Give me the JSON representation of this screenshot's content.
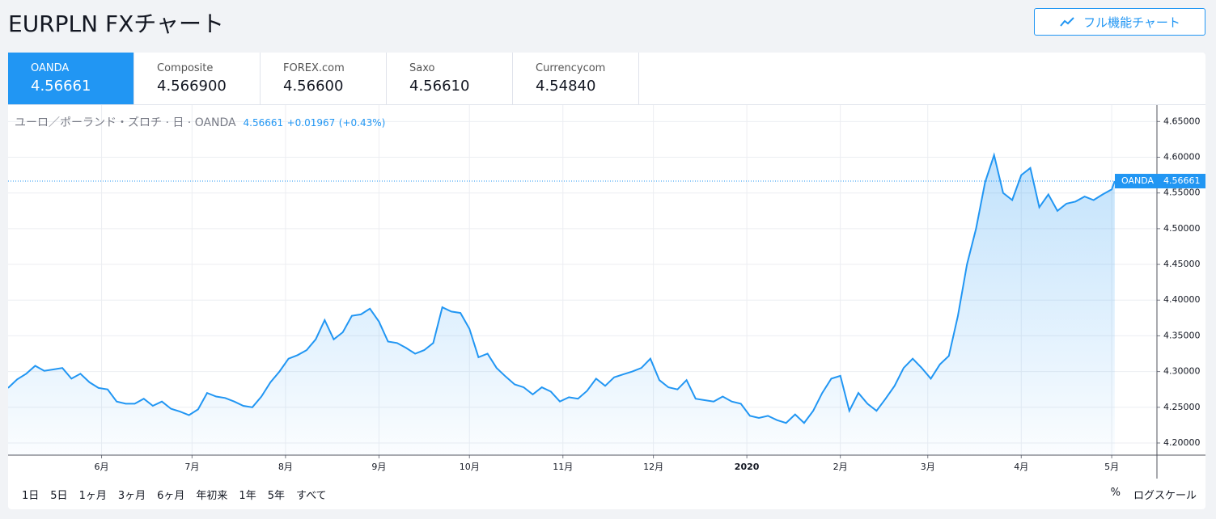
{
  "header": {
    "title": "EURPLN FXチャート",
    "button": "フル機能チャート"
  },
  "tabs": [
    {
      "name": "OANDA",
      "price": "4.56661"
    },
    {
      "name": "Composite",
      "price": "4.566900"
    },
    {
      "name": "FOREX.com",
      "price": "4.56600"
    },
    {
      "name": "Saxo",
      "price": "4.56610"
    },
    {
      "name": "Currencycom",
      "price": "4.54840"
    }
  ],
  "chart_data": {
    "type": "line",
    "legend": "ユーロ／ポーランド・ズロチ · 日 · OANDA",
    "change": "+0.01967",
    "change_pct": "(+0.43%)",
    "series": [
      {
        "name": "OANDA",
        "color": "#2196f3",
        "x": [
          0,
          3,
          6,
          9,
          12,
          15,
          18,
          21,
          24,
          27,
          30,
          33,
          36,
          39,
          42,
          45,
          48,
          51,
          54,
          57,
          60,
          63,
          66,
          69,
          72,
          75,
          78,
          81,
          84,
          87,
          90,
          93,
          96,
          99,
          102,
          105,
          108,
          111,
          114,
          117,
          120,
          123,
          126,
          129,
          132,
          135,
          138,
          141,
          144,
          147,
          150,
          153,
          156,
          159,
          162,
          165,
          168,
          171,
          174,
          177,
          180,
          183,
          186,
          189,
          192,
          195,
          198,
          201,
          204,
          207,
          210,
          213,
          216,
          219,
          222,
          225,
          228,
          231,
          234,
          237,
          240,
          243,
          246,
          249,
          252,
          255,
          258,
          261,
          264,
          267,
          270,
          273,
          276,
          279,
          282,
          285,
          288,
          291,
          294,
          297,
          300,
          303,
          306,
          309,
          312,
          315,
          318,
          321,
          324,
          327,
          330,
          333,
          336,
          339,
          342,
          345,
          348,
          351,
          354,
          357,
          360,
          363,
          366,
          367
        ],
        "values": [
          4.277,
          4.289,
          4.297,
          4.308,
          4.301,
          4.303,
          4.305,
          4.29,
          4.297,
          4.285,
          4.277,
          4.275,
          4.258,
          4.255,
          4.255,
          4.262,
          4.252,
          4.258,
          4.248,
          4.244,
          4.239,
          4.247,
          4.27,
          4.265,
          4.263,
          4.258,
          4.252,
          4.25,
          4.265,
          4.285,
          4.3,
          4.318,
          4.323,
          4.33,
          4.345,
          4.372,
          4.345,
          4.355,
          4.378,
          4.38,
          4.388,
          4.37,
          4.342,
          4.34,
          4.333,
          4.325,
          4.33,
          4.34,
          4.39,
          4.384,
          4.382,
          4.36,
          4.32,
          4.325,
          4.305,
          4.293,
          4.282,
          4.278,
          4.268,
          4.278,
          4.272,
          4.258,
          4.264,
          4.262,
          4.273,
          4.29,
          4.28,
          4.292,
          4.296,
          4.3,
          4.305,
          4.318,
          4.288,
          4.278,
          4.275,
          4.288,
          4.262,
          4.26,
          4.258,
          4.265,
          4.258,
          4.255,
          4.238,
          4.235,
          4.238,
          4.232,
          4.228,
          4.24,
          4.228,
          4.245,
          4.27,
          4.29,
          4.294,
          4.245,
          4.27,
          4.255,
          4.245,
          4.262,
          4.28,
          4.305,
          4.318,
          4.305,
          4.29,
          4.31,
          4.322,
          4.378,
          4.45,
          4.5,
          4.565,
          4.603,
          4.55,
          4.54,
          4.575,
          4.585,
          4.53,
          4.548,
          4.525,
          4.535,
          4.538,
          4.545,
          4.54,
          4.548,
          4.555,
          4.56661
        ]
      }
    ],
    "xlim": [
      0,
      381
    ],
    "xticks": [
      {
        "value": 31,
        "label": "6月"
      },
      {
        "value": 61,
        "label": "7月"
      },
      {
        "value": 92,
        "label": "8月"
      },
      {
        "value": 123,
        "label": "9月"
      },
      {
        "value": 153,
        "label": "10月"
      },
      {
        "value": 184,
        "label": "11月"
      },
      {
        "value": 214,
        "label": "12月"
      },
      {
        "value": 245,
        "label": "2020"
      },
      {
        "value": 276,
        "label": "2月"
      },
      {
        "value": 305,
        "label": "3月"
      },
      {
        "value": 336,
        "label": "4月"
      },
      {
        "value": 366,
        "label": "5月"
      }
    ],
    "ylim": [
      4.183,
      4.673
    ],
    "yticks": [
      {
        "value": 4.2,
        "label": "4.20000"
      },
      {
        "value": 4.25,
        "label": "4.25000"
      },
      {
        "value": 4.3,
        "label": "4.30000"
      },
      {
        "value": 4.35,
        "label": "4.35000"
      },
      {
        "value": 4.4,
        "label": "4.40000"
      },
      {
        "value": 4.45,
        "label": "4.45000"
      },
      {
        "value": 4.5,
        "label": "4.50000"
      },
      {
        "value": 4.55,
        "label": "4.55000"
      },
      {
        "value": 4.6,
        "label": "4.60000"
      },
      {
        "value": 4.65,
        "label": "4.65000"
      }
    ],
    "grid": true
  },
  "ranges": [
    "1日",
    "5日",
    "1ヶ月",
    "3ヶ月",
    "6ヶ月",
    "年初来",
    "1年",
    "5年",
    "すべて"
  ],
  "options": [
    "%",
    "ログスケール"
  ]
}
